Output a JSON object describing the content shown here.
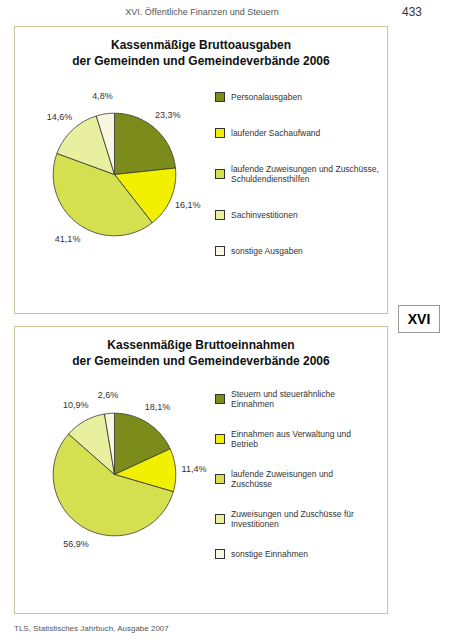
{
  "page_title": "XVI. Öffentliche Finanzen und Steuern",
  "page_number": "433",
  "side_label": "XVI",
  "footer": "TLS, Statistisches Jahrbuch, Ausgabe 2007",
  "chart_data": [
    {
      "type": "pie",
      "title": "Kassenmäßige Bruttoausgaben",
      "subtitle": "der Gemeinden und Gemeindeverbände 2006",
      "categories": [
        "Personalausgaben",
        "laufender Sachaufwand",
        "laufende Zuweisungen und Zuschüsse,\nSchuldendiensthilfen",
        "Sachinvestitionen",
        "sonstige Ausgaben"
      ],
      "values": [
        23.3,
        16.1,
        41.1,
        14.6,
        4.8
      ],
      "value_labels": [
        "23,3%",
        "16,1%",
        "41,1%",
        "14,6%",
        "4,8%"
      ],
      "colors": [
        "#7b8c1a",
        "#f0f000",
        "#d4e050",
        "#e8f0a0",
        "#f8f8e0"
      ],
      "data_labels": true,
      "legend": "right"
    },
    {
      "type": "pie",
      "title": "Kassenmäßige Bruttoeinnahmen",
      "subtitle": "der Gemeinden und Gemeindeverbände 2006",
      "categories": [
        "Steuern und steuerähnliche\nEinnahmen",
        "Einnahmen aus Verwaltung und\nBetrieb",
        "laufende Zuweisungen und\nZuschüsse",
        "Zuweisungen und Zuschüsse für\nInvestitionen",
        "sonstige Einnahmen"
      ],
      "values": [
        18.1,
        11.4,
        56.9,
        10.9,
        2.6
      ],
      "value_labels": [
        "18,1%",
        "11,4%",
        "56,9%",
        "10,9%",
        "2,6%"
      ],
      "colors": [
        "#7b8c1a",
        "#f0f000",
        "#d4e050",
        "#e8f0a0",
        "#f8f8e0"
      ],
      "data_labels": true,
      "legend": "right"
    }
  ]
}
